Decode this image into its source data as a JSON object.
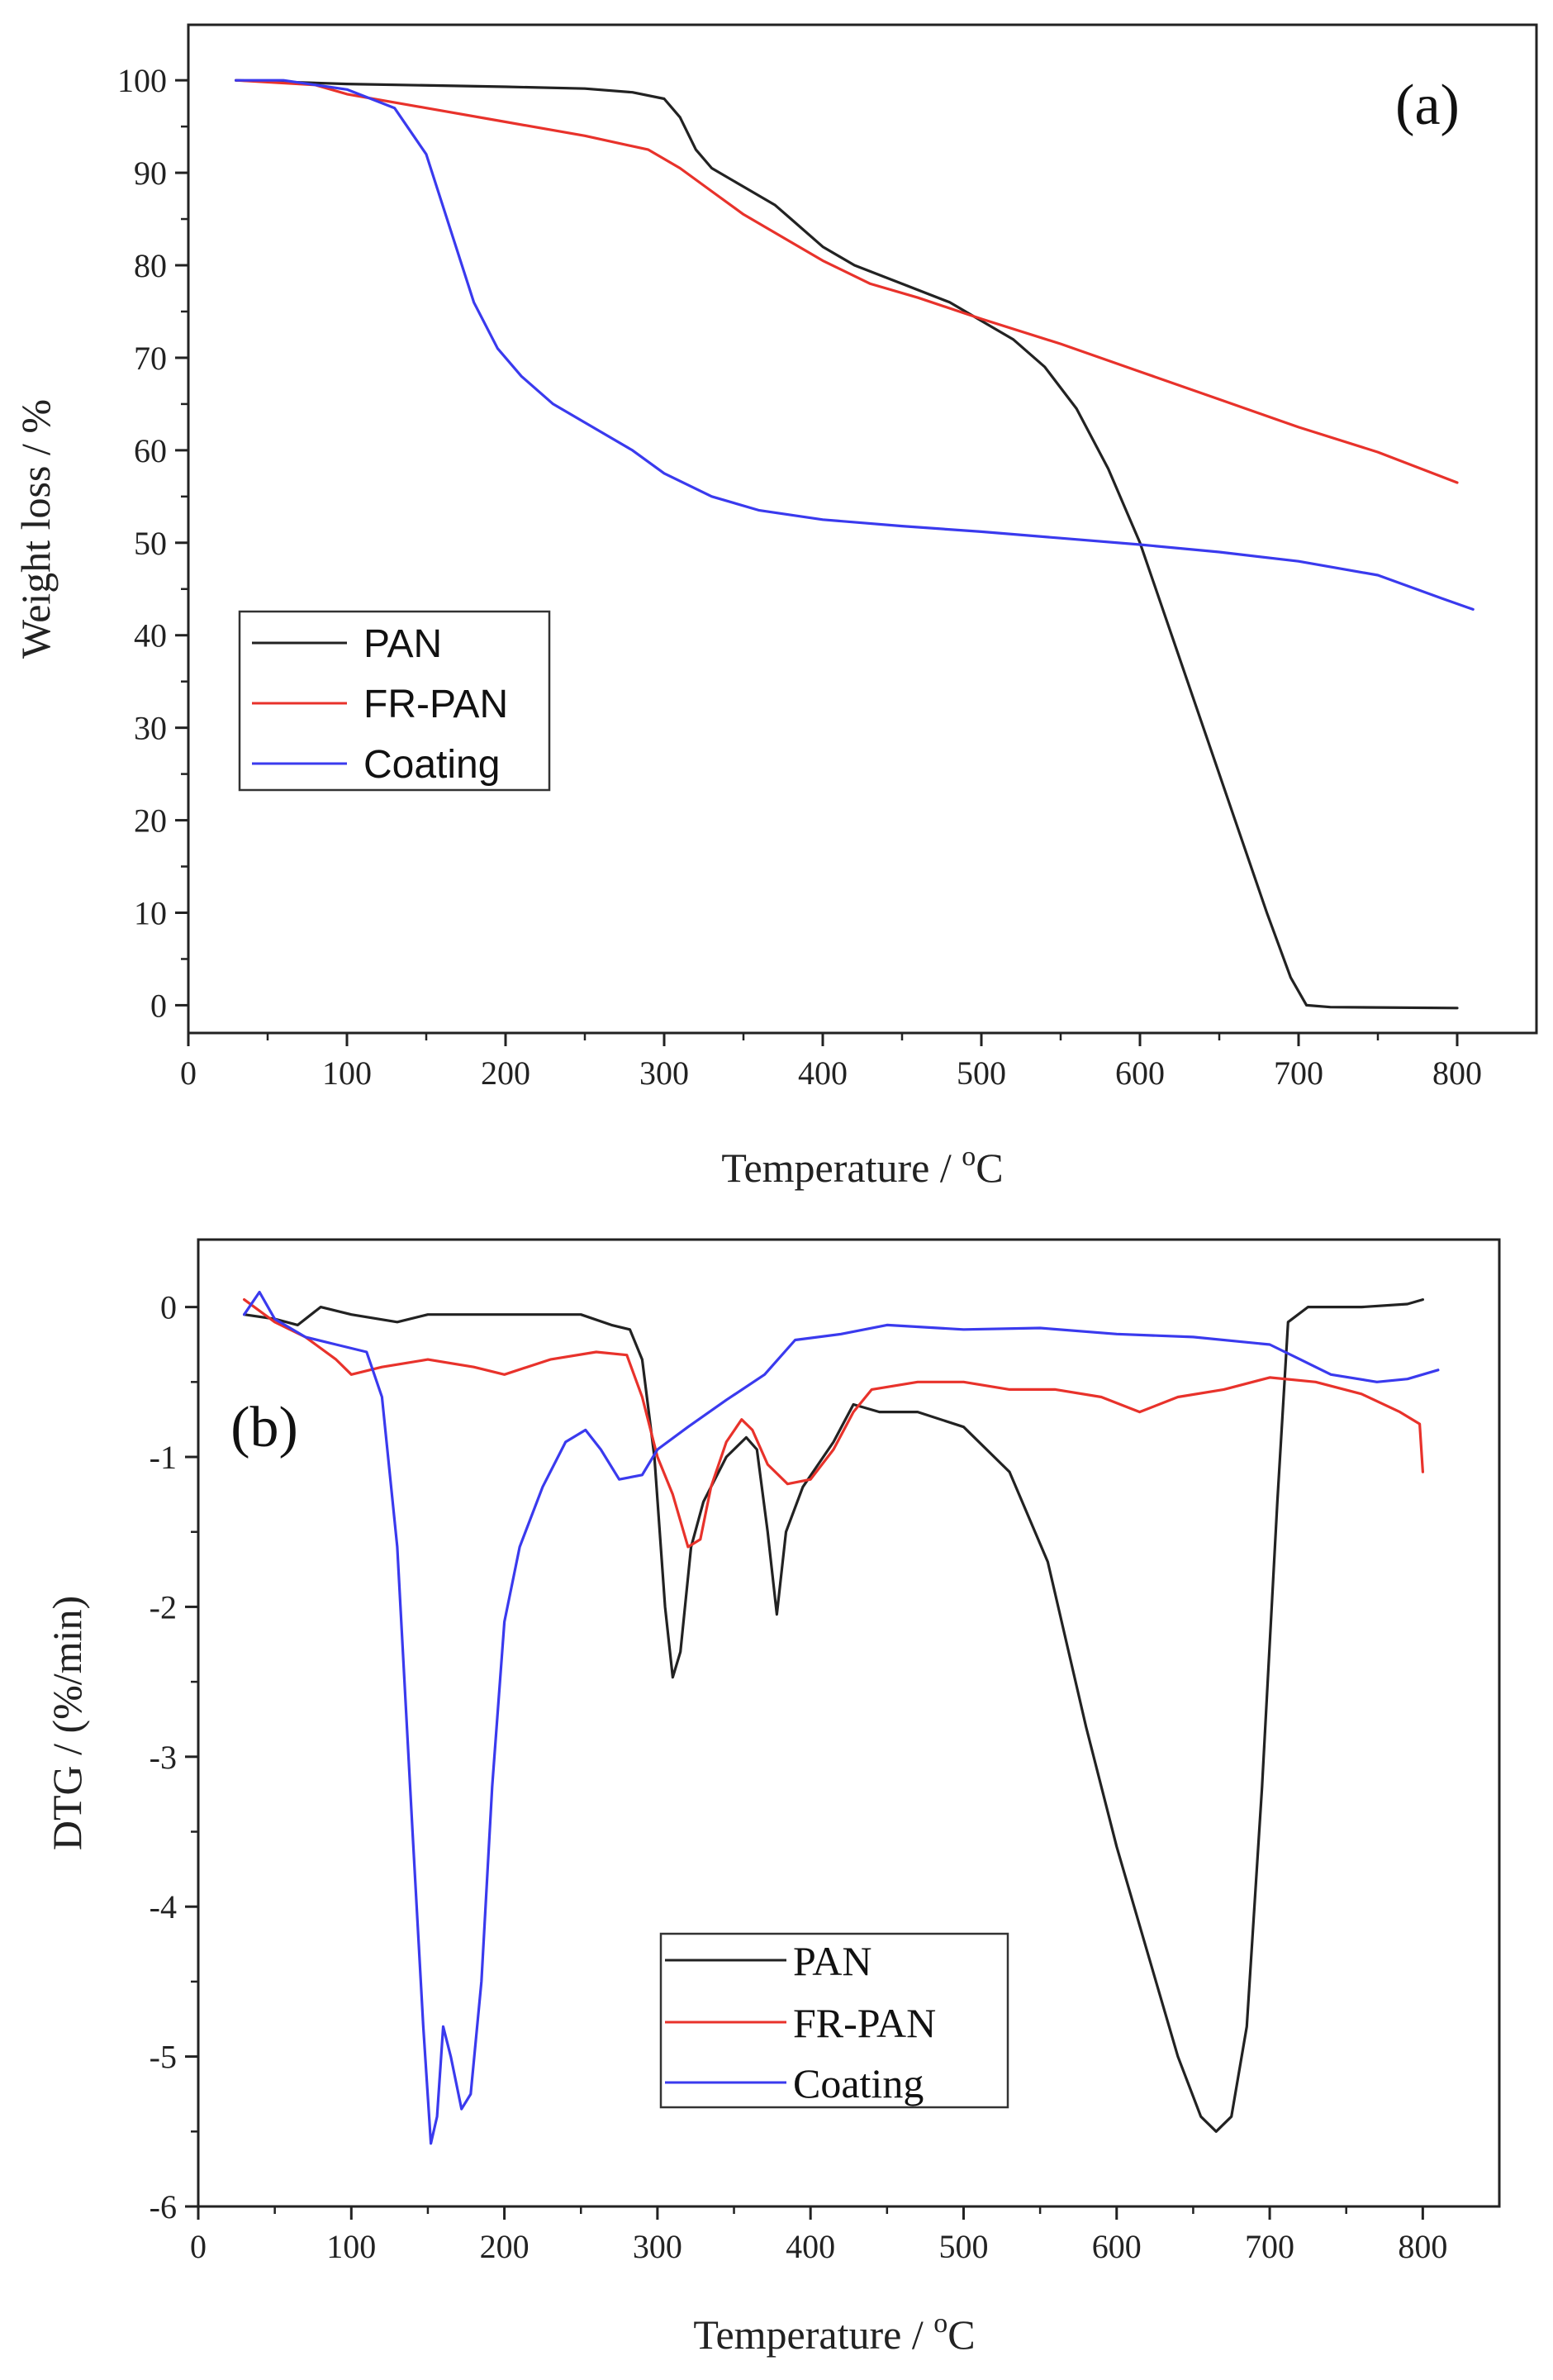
{
  "chart_data": [
    {
      "panel_label": "(a)",
      "type": "line",
      "xlabel": "Temperature / °C",
      "xlabel_main": "Temperature / ",
      "xlabel_sup": "o",
      "xlabel_unit": "C",
      "ylabel": "Weight loss / %",
      "xlim": [
        0,
        850
      ],
      "ylim": [
        -3,
        106
      ],
      "xticks": [
        0,
        100,
        200,
        300,
        400,
        500,
        600,
        700,
        800
      ],
      "xtick_labels": [
        "0",
        "100",
        "200",
        "300",
        "400",
        "500",
        "600",
        "700",
        "800"
      ],
      "yticks": [
        0,
        10,
        20,
        30,
        40,
        50,
        60,
        70,
        80,
        90,
        100
      ],
      "ytick_labels": [
        "0",
        "10",
        "20",
        "30",
        "40",
        "50",
        "60",
        "70",
        "80",
        "90",
        "100"
      ],
      "legend_position": "middle-left",
      "series": [
        {
          "name": "PAN",
          "color": "#222222",
          "points": [
            [
              30,
              100
            ],
            [
              100,
              99.6
            ],
            [
              200,
              99.3
            ],
            [
              250,
              99.1
            ],
            [
              280,
              98.7
            ],
            [
              300,
              98
            ],
            [
              310,
              96
            ],
            [
              320,
              92.5
            ],
            [
              330,
              90.5
            ],
            [
              350,
              88.5
            ],
            [
              370,
              86.5
            ],
            [
              380,
              85
            ],
            [
              400,
              82
            ],
            [
              420,
              80
            ],
            [
              450,
              78
            ],
            [
              480,
              76
            ],
            [
              500,
              74
            ],
            [
              520,
              72
            ],
            [
              540,
              69
            ],
            [
              560,
              64.5
            ],
            [
              580,
              58
            ],
            [
              600,
              50
            ],
            [
              620,
              40
            ],
            [
              640,
              30
            ],
            [
              660,
              20
            ],
            [
              680,
              10
            ],
            [
              695,
              3
            ],
            [
              705,
              0
            ],
            [
              720,
              -0.2
            ],
            [
              800,
              -0.3
            ]
          ]
        },
        {
          "name": "FR-PAN",
          "color": "#e8322b",
          "points": [
            [
              30,
              100
            ],
            [
              80,
              99.5
            ],
            [
              100,
              98.5
            ],
            [
              150,
              97
            ],
            [
              200,
              95.5
            ],
            [
              250,
              94
            ],
            [
              290,
              92.5
            ],
            [
              310,
              90.5
            ],
            [
              330,
              88
            ],
            [
              350,
              85.5
            ],
            [
              380,
              82.5
            ],
            [
              400,
              80.5
            ],
            [
              430,
              78
            ],
            [
              460,
              76.5
            ],
            [
              500,
              74.2
            ],
            [
              550,
              71.5
            ],
            [
              600,
              68.5
            ],
            [
              650,
              65.5
            ],
            [
              700,
              62.5
            ],
            [
              750,
              59.8
            ],
            [
              800,
              56.5
            ]
          ]
        },
        {
          "name": "Coating",
          "color": "#3a3aee",
          "points": [
            [
              30,
              100
            ],
            [
              60,
              100
            ],
            [
              100,
              99
            ],
            [
              130,
              97
            ],
            [
              150,
              92
            ],
            [
              165,
              84
            ],
            [
              180,
              76
            ],
            [
              195,
              71
            ],
            [
              210,
              68
            ],
            [
              230,
              65
            ],
            [
              260,
              62
            ],
            [
              280,
              60
            ],
            [
              300,
              57.5
            ],
            [
              330,
              55
            ],
            [
              360,
              53.5
            ],
            [
              400,
              52.5
            ],
            [
              450,
              51.8
            ],
            [
              500,
              51.2
            ],
            [
              550,
              50.5
            ],
            [
              600,
              49.8
            ],
            [
              650,
              49
            ],
            [
              700,
              48
            ],
            [
              750,
              46.5
            ],
            [
              790,
              44
            ],
            [
              810,
              42.8
            ]
          ]
        }
      ]
    },
    {
      "panel_label": "(b)",
      "type": "line",
      "xlabel": "Temperature / °C",
      "xlabel_main": "Temperature / ",
      "xlabel_sup": "o",
      "xlabel_unit": "C",
      "ylabel": "DTG / (%/min)",
      "xlim": [
        0,
        850
      ],
      "ylim": [
        -6,
        0.45
      ],
      "xticks": [
        0,
        100,
        200,
        300,
        400,
        500,
        600,
        700,
        800
      ],
      "xtick_labels": [
        "0",
        "100",
        "200",
        "300",
        "400",
        "500",
        "600",
        "700",
        "800"
      ],
      "yticks": [
        0,
        -1,
        -2,
        -3,
        -4,
        -5,
        -6
      ],
      "ytick_labels": [
        "0",
        "-1",
        "-2",
        "-3",
        "-4",
        "-5",
        "-6"
      ],
      "legend_position": "bottom-center",
      "series": [
        {
          "name": "PAN",
          "color": "#222222",
          "points": [
            [
              30,
              -0.05
            ],
            [
              50,
              -0.08
            ],
            [
              65,
              -0.12
            ],
            [
              80,
              0
            ],
            [
              100,
              -0.05
            ],
            [
              130,
              -0.1
            ],
            [
              150,
              -0.05
            ],
            [
              180,
              -0.05
            ],
            [
              210,
              -0.05
            ],
            [
              250,
              -0.05
            ],
            [
              270,
              -0.12
            ],
            [
              282,
              -0.15
            ],
            [
              290,
              -0.35
            ],
            [
              298,
              -1.0
            ],
            [
              305,
              -2.0
            ],
            [
              310,
              -2.47
            ],
            [
              315,
              -2.3
            ],
            [
              322,
              -1.6
            ],
            [
              330,
              -1.3
            ],
            [
              345,
              -1.0
            ],
            [
              358,
              -0.87
            ],
            [
              365,
              -0.95
            ],
            [
              372,
              -1.5
            ],
            [
              378,
              -2.05
            ],
            [
              384,
              -1.5
            ],
            [
              395,
              -1.2
            ],
            [
              415,
              -0.9
            ],
            [
              428,
              -0.65
            ],
            [
              445,
              -0.7
            ],
            [
              470,
              -0.7
            ],
            [
              500,
              -0.8
            ],
            [
              530,
              -1.1
            ],
            [
              555,
              -1.7
            ],
            [
              580,
              -2.8
            ],
            [
              600,
              -3.6
            ],
            [
              620,
              -4.3
            ],
            [
              640,
              -5.0
            ],
            [
              655,
              -5.4
            ],
            [
              665,
              -5.5
            ],
            [
              675,
              -5.4
            ],
            [
              685,
              -4.8
            ],
            [
              695,
              -3.2
            ],
            [
              705,
              -1.3
            ],
            [
              712,
              -0.1
            ],
            [
              725,
              0
            ],
            [
              760,
              0
            ],
            [
              790,
              0.02
            ],
            [
              800,
              0.05
            ]
          ]
        },
        {
          "name": "FR-PAN",
          "color": "#e8322b",
          "points": [
            [
              30,
              0.05
            ],
            [
              50,
              -0.1
            ],
            [
              70,
              -0.2
            ],
            [
              90,
              -0.35
            ],
            [
              100,
              -0.45
            ],
            [
              120,
              -0.4
            ],
            [
              150,
              -0.35
            ],
            [
              180,
              -0.4
            ],
            [
              200,
              -0.45
            ],
            [
              230,
              -0.35
            ],
            [
              260,
              -0.3
            ],
            [
              280,
              -0.32
            ],
            [
              290,
              -0.6
            ],
            [
              300,
              -1.0
            ],
            [
              310,
              -1.25
            ],
            [
              320,
              -1.6
            ],
            [
              328,
              -1.55
            ],
            [
              335,
              -1.2
            ],
            [
              345,
              -0.9
            ],
            [
              355,
              -0.75
            ],
            [
              362,
              -0.82
            ],
            [
              372,
              -1.05
            ],
            [
              385,
              -1.18
            ],
            [
              400,
              -1.15
            ],
            [
              415,
              -0.95
            ],
            [
              428,
              -0.7
            ],
            [
              440,
              -0.55
            ],
            [
              470,
              -0.5
            ],
            [
              500,
              -0.5
            ],
            [
              530,
              -0.55
            ],
            [
              560,
              -0.55
            ],
            [
              590,
              -0.6
            ],
            [
              615,
              -0.7
            ],
            [
              640,
              -0.6
            ],
            [
              670,
              -0.55
            ],
            [
              700,
              -0.47
            ],
            [
              730,
              -0.5
            ],
            [
              760,
              -0.58
            ],
            [
              785,
              -0.7
            ],
            [
              798,
              -0.78
            ],
            [
              800,
              -1.1
            ]
          ]
        },
        {
          "name": "Coating",
          "color": "#3a3aee",
          "points": [
            [
              30,
              -0.05
            ],
            [
              40,
              0.1
            ],
            [
              50,
              -0.08
            ],
            [
              70,
              -0.2
            ],
            [
              90,
              -0.25
            ],
            [
              110,
              -0.3
            ],
            [
              120,
              -0.6
            ],
            [
              130,
              -1.6
            ],
            [
              140,
              -3.5
            ],
            [
              147,
              -4.8
            ],
            [
              152,
              -5.58
            ],
            [
              156,
              -5.4
            ],
            [
              160,
              -4.8
            ],
            [
              165,
              -5.0
            ],
            [
              172,
              -5.35
            ],
            [
              178,
              -5.25
            ],
            [
              185,
              -4.5
            ],
            [
              192,
              -3.2
            ],
            [
              200,
              -2.1
            ],
            [
              210,
              -1.6
            ],
            [
              225,
              -1.2
            ],
            [
              240,
              -0.9
            ],
            [
              253,
              -0.82
            ],
            [
              263,
              -0.95
            ],
            [
              275,
              -1.15
            ],
            [
              290,
              -1.12
            ],
            [
              300,
              -0.95
            ],
            [
              320,
              -0.8
            ],
            [
              345,
              -0.62
            ],
            [
              370,
              -0.45
            ],
            [
              390,
              -0.22
            ],
            [
              420,
              -0.18
            ],
            [
              450,
              -0.12
            ],
            [
              500,
              -0.15
            ],
            [
              550,
              -0.14
            ],
            [
              600,
              -0.18
            ],
            [
              650,
              -0.2
            ],
            [
              700,
              -0.25
            ],
            [
              720,
              -0.35
            ],
            [
              740,
              -0.45
            ],
            [
              770,
              -0.5
            ],
            [
              790,
              -0.48
            ],
            [
              810,
              -0.42
            ]
          ]
        }
      ]
    }
  ]
}
